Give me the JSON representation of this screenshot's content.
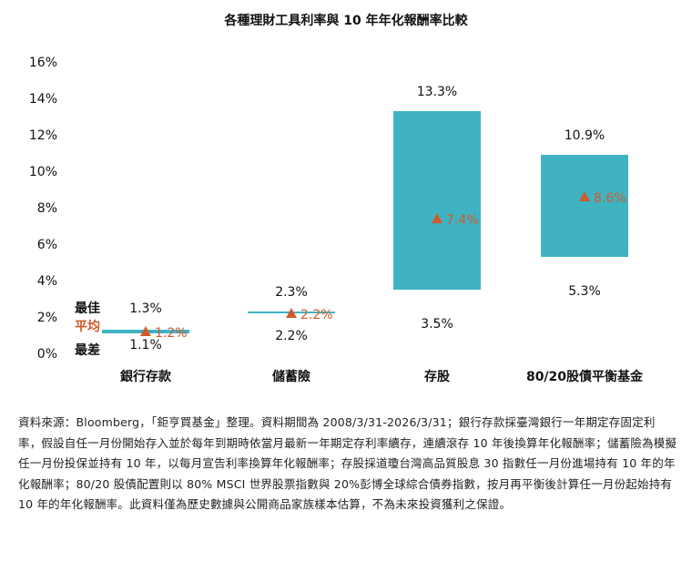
{
  "chart_data": {
    "type": "range-bar",
    "title": "各種理財工具利率與 10 年年化報酬率比較",
    "ylim": [
      0,
      16
    ],
    "yticks": [
      "0%",
      "2%",
      "4%",
      "6%",
      "8%",
      "10%",
      "12%",
      "14%",
      "16%"
    ],
    "categories": [
      "銀行存款",
      "儲蓄險",
      "存股",
      "80/20股債平衡基金"
    ],
    "best": [
      1.3,
      2.3,
      13.3,
      10.9
    ],
    "average": [
      1.2,
      2.2,
      7.4,
      8.6
    ],
    "worst": [
      1.1,
      2.2,
      3.5,
      5.3
    ],
    "best_labels": [
      "1.3%",
      "2.3%",
      "13.3%",
      "10.9%"
    ],
    "average_labels": [
      "▲ 1.2%",
      "▲ 2.2%",
      "▲ 7.4%",
      "▲ 8.6%"
    ],
    "worst_labels": [
      "1.1%",
      "2.2%",
      "3.5%",
      "5.3%"
    ],
    "legend": {
      "best": "最佳",
      "average": "平均",
      "worst": "最差"
    },
    "colors": {
      "bar": "#3fb3c2",
      "average": "#d05a2a",
      "text": "#111111"
    }
  },
  "source_note": "資料來源：Bloomberg，「鉅亨買基金」整理。資料期間為 2008/3/31-2026/3/31；銀行存款採臺灣銀行一年期定存固定利率，假設自任一月份開始存入並於每年到期時依當月最新一年期定存利率續存，連續滾存 10 年後換算年化報酬率；儲蓄險為模擬任一月份投保並持有 10 年，以每月宣告利率換算年化報酬率；存股採道瓊台灣高品質股息 30 指數任一月份進場持有 10 年的年化報酬率；80/20 股債配置則以 80% MSCI 世界股票指數與 20%彭博全球綜合債券指數，按月再平衡後計算任一月份起始持有 10 年的年化報酬率。此資料僅為歷史數據與公開商品家族樣本估算，不為未來投資獲利之保證。"
}
